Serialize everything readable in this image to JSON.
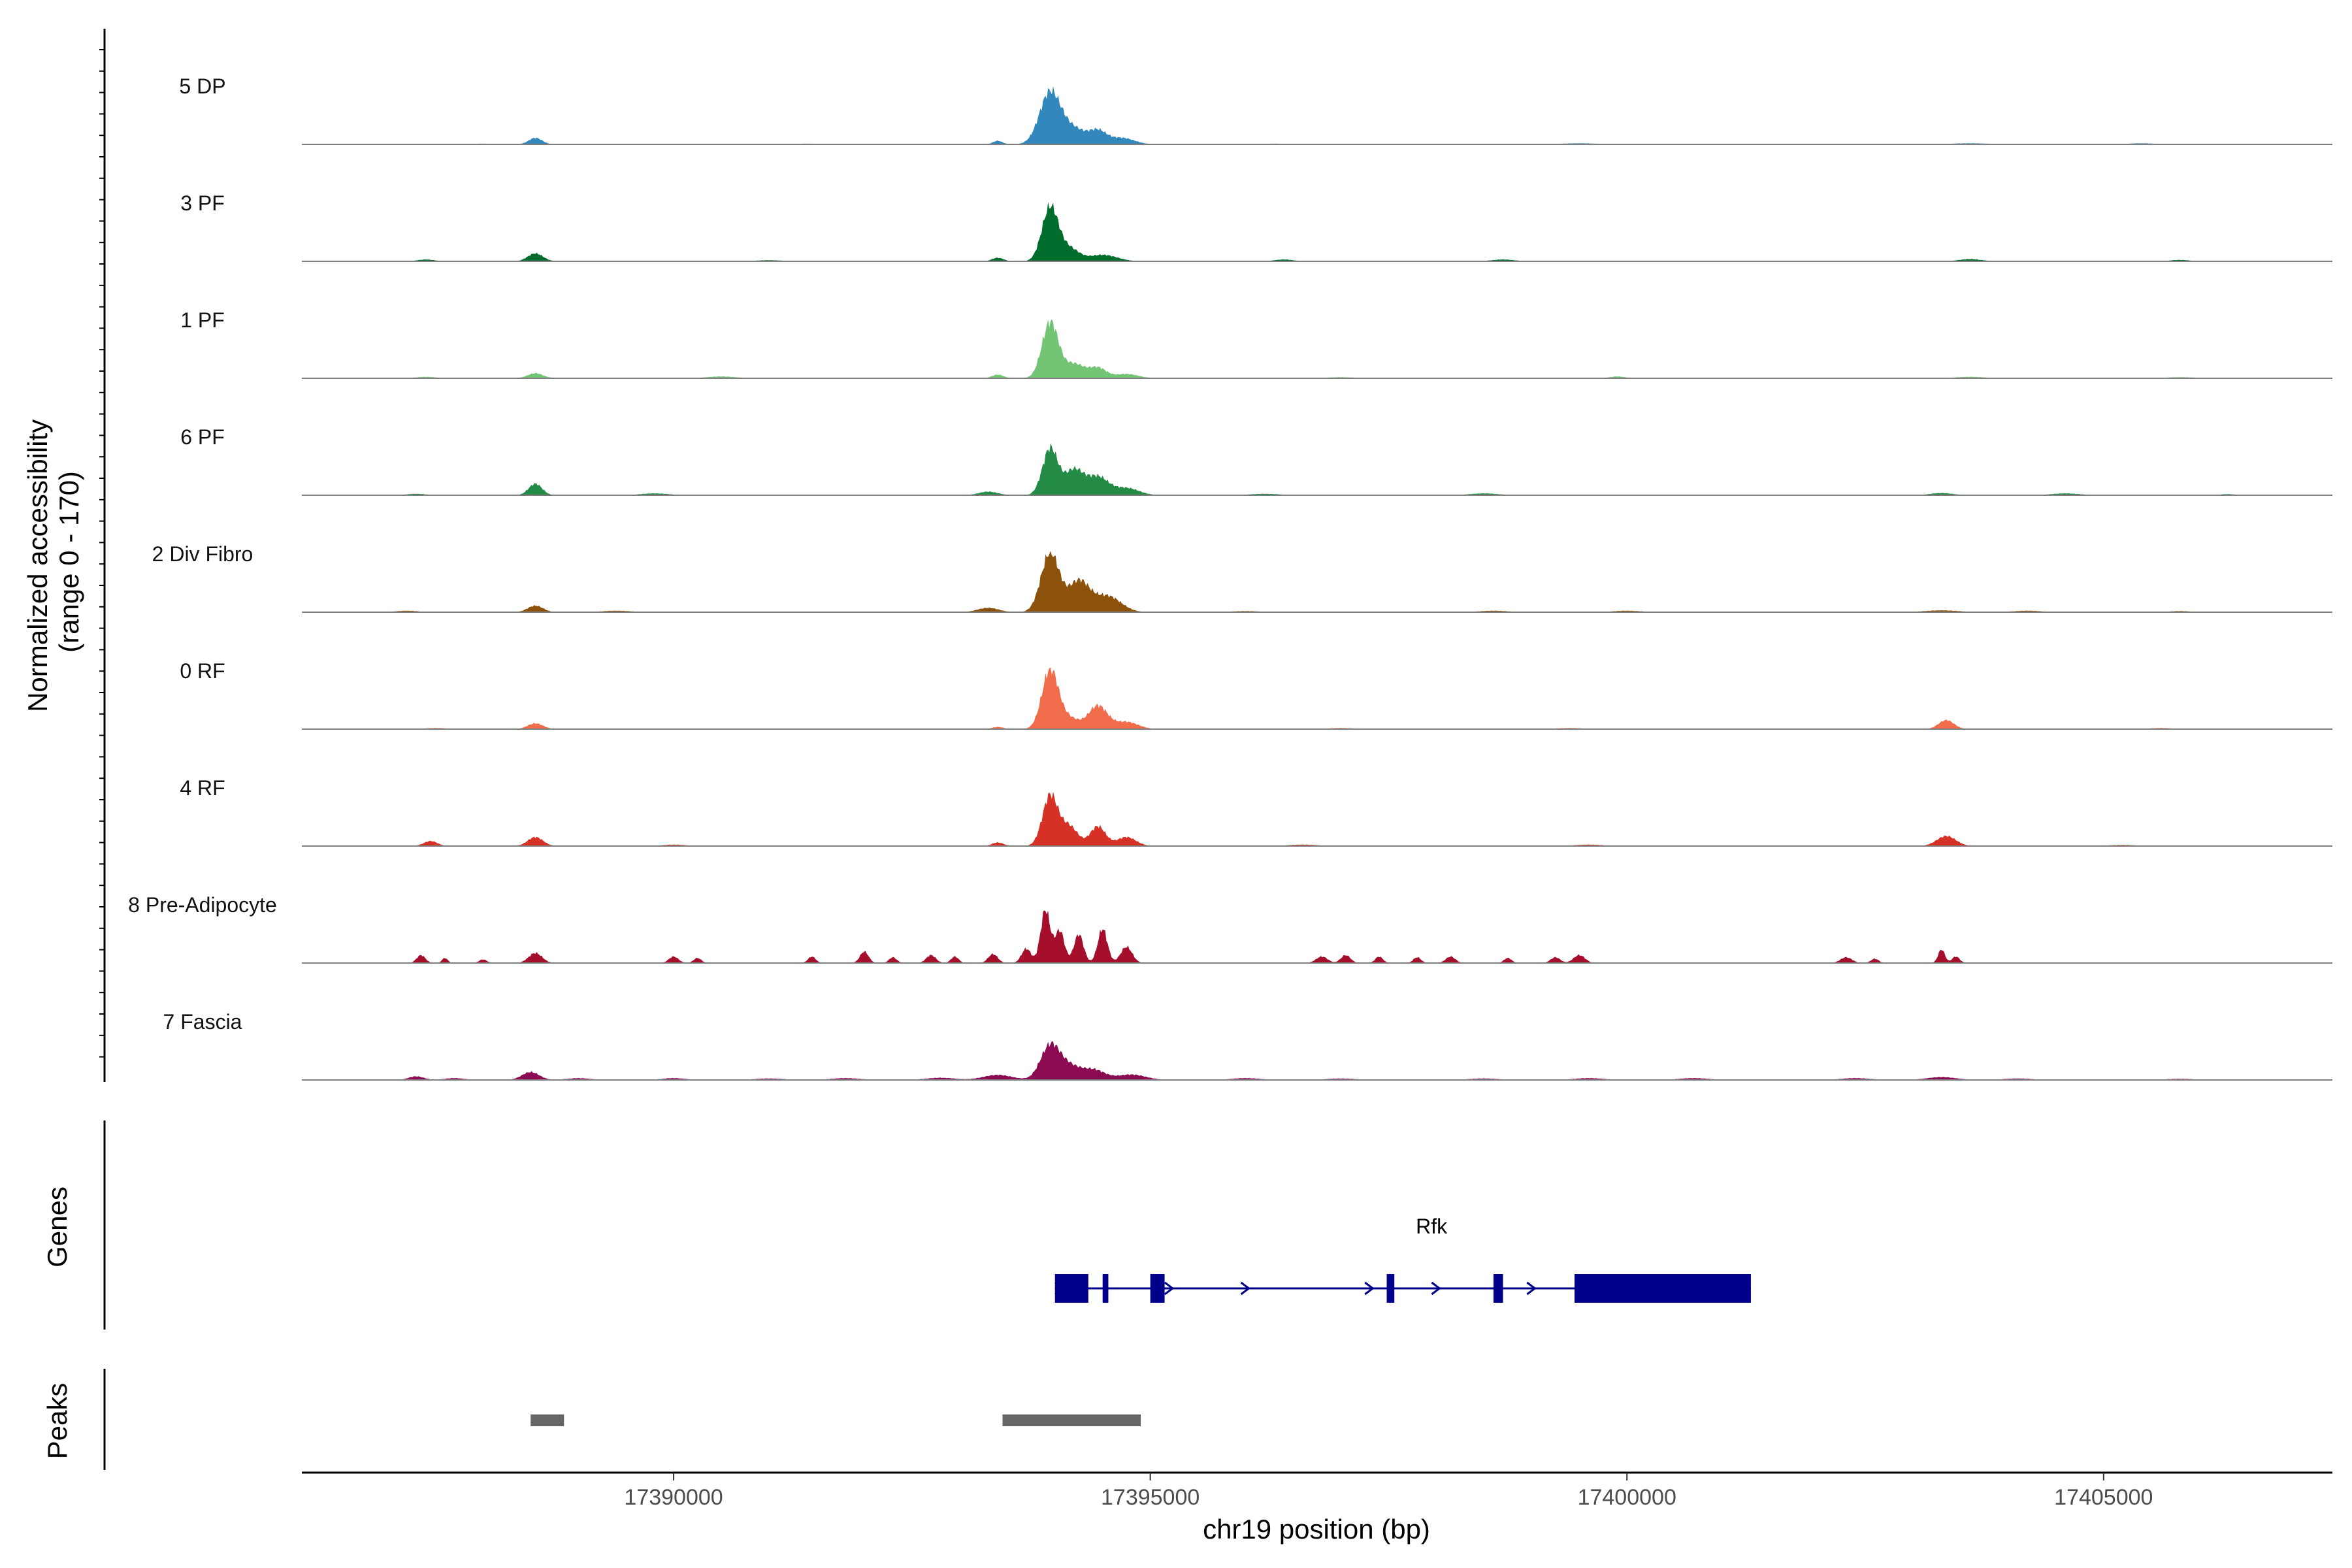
{
  "chart_data": {
    "type": "area",
    "title": "",
    "chromosome": "chr19",
    "xlabel": "chr19 position (bp)",
    "ylabel": "Normalized accessibility\n(range 0 - 170)",
    "ylabel_lines": [
      "Normalized accessibility",
      "(range 0 - 170)"
    ],
    "ylim": [
      0,
      170
    ],
    "xlim": [
      17386100,
      17407400
    ],
    "x_ticks": [
      17390000,
      17395000,
      17400000,
      17405000
    ],
    "x_tick_labels": [
      "17390000",
      "17395000",
      "17400000",
      "17405000"
    ],
    "series": [
      {
        "name": "5 DP",
        "color": "#3288bd",
        "peaks": [
          [
            17388550,
            18,
            70
          ],
          [
            17393400,
            10,
            50
          ],
          [
            17393950,
            145,
            110
          ],
          [
            17394200,
            42,
            120
          ],
          [
            17394450,
            35,
            90
          ],
          [
            17394700,
            18,
            130
          ],
          [
            17388000,
            2,
            120
          ],
          [
            17391400,
            2,
            160
          ],
          [
            17396300,
            2,
            120
          ],
          [
            17399500,
            3,
            200
          ],
          [
            17403600,
            3,
            200
          ],
          [
            17405400,
            3,
            150
          ]
        ]
      },
      {
        "name": "3 PF",
        "color": "#006d2c",
        "peaks": [
          [
            17388550,
            22,
            80
          ],
          [
            17387400,
            5,
            90
          ],
          [
            17393400,
            10,
            60
          ],
          [
            17393950,
            150,
            85
          ],
          [
            17394150,
            35,
            100
          ],
          [
            17394500,
            18,
            150
          ],
          [
            17396400,
            5,
            100
          ],
          [
            17398700,
            5,
            120
          ],
          [
            17403600,
            6,
            120
          ],
          [
            17405800,
            4,
            100
          ],
          [
            17391000,
            3,
            150
          ]
        ]
      },
      {
        "name": "1 PF",
        "color": "#74c476",
        "peaks": [
          [
            17388550,
            14,
            80
          ],
          [
            17387400,
            4,
            100
          ],
          [
            17390500,
            5,
            150
          ],
          [
            17393400,
            10,
            60
          ],
          [
            17393950,
            155,
            85
          ],
          [
            17394200,
            40,
            110
          ],
          [
            17394450,
            28,
            90
          ],
          [
            17394750,
            12,
            120
          ],
          [
            17397000,
            3,
            130
          ],
          [
            17399900,
            5,
            80
          ],
          [
            17403600,
            4,
            150
          ],
          [
            17405800,
            3,
            150
          ]
        ]
      },
      {
        "name": "6 PF",
        "color": "#238b45",
        "peaks": [
          [
            17388550,
            32,
            70
          ],
          [
            17387300,
            4,
            100
          ],
          [
            17389800,
            5,
            150
          ],
          [
            17393300,
            10,
            100
          ],
          [
            17393950,
            130,
            80
          ],
          [
            17394200,
            70,
            100
          ],
          [
            17394450,
            50,
            110
          ],
          [
            17394750,
            20,
            130
          ],
          [
            17396200,
            4,
            150
          ],
          [
            17398500,
            5,
            150
          ],
          [
            17403300,
            6,
            120
          ],
          [
            17404600,
            5,
            150
          ],
          [
            17406300,
            3,
            80
          ]
        ]
      },
      {
        "name": "2 Div Fibro",
        "color": "#8c510a",
        "peaks": [
          [
            17388550,
            18,
            80
          ],
          [
            17387200,
            4,
            120
          ],
          [
            17389400,
            4,
            150
          ],
          [
            17393300,
            12,
            110
          ],
          [
            17393950,
            165,
            95
          ],
          [
            17394250,
            85,
            110
          ],
          [
            17394550,
            45,
            140
          ],
          [
            17396000,
            3,
            150
          ],
          [
            17398600,
            4,
            150
          ],
          [
            17400000,
            4,
            150
          ],
          [
            17403300,
            5,
            180
          ],
          [
            17404200,
            4,
            150
          ],
          [
            17405800,
            3,
            120
          ]
        ]
      },
      {
        "name": "0 RF",
        "color": "#f16c4a",
        "peaks": [
          [
            17388550,
            16,
            80
          ],
          [
            17387500,
            3,
            120
          ],
          [
            17393400,
            6,
            60
          ],
          [
            17393950,
            165,
            85
          ],
          [
            17394150,
            30,
            100
          ],
          [
            17394450,
            65,
            100
          ],
          [
            17394750,
            20,
            120
          ],
          [
            17397000,
            3,
            150
          ],
          [
            17399400,
            3,
            150
          ],
          [
            17403350,
            25,
            80
          ],
          [
            17405600,
            3,
            120
          ]
        ]
      },
      {
        "name": "4 RF",
        "color": "#d73027",
        "peaks": [
          [
            17387450,
            14,
            70
          ],
          [
            17388550,
            25,
            80
          ],
          [
            17390000,
            4,
            120
          ],
          [
            17393400,
            10,
            60
          ],
          [
            17393950,
            140,
            80
          ],
          [
            17394150,
            55,
            90
          ],
          [
            17394450,
            55,
            80
          ],
          [
            17394750,
            25,
            100
          ],
          [
            17396600,
            4,
            150
          ],
          [
            17399600,
            4,
            150
          ],
          [
            17403350,
            28,
            100
          ],
          [
            17405200,
            3,
            150
          ]
        ]
      },
      {
        "name": "8 Pre-Adipocyte",
        "color": "#a50f2c",
        "peaks": [
          [
            17387350,
            22,
            45
          ],
          [
            17387600,
            14,
            30
          ],
          [
            17388000,
            10,
            40
          ],
          [
            17388550,
            28,
            70
          ],
          [
            17390000,
            18,
            50
          ],
          [
            17390250,
            14,
            40
          ],
          [
            17391450,
            18,
            40
          ],
          [
            17392000,
            32,
            45
          ],
          [
            17392300,
            16,
            40
          ],
          [
            17392700,
            22,
            50
          ],
          [
            17392950,
            18,
            40
          ],
          [
            17393350,
            25,
            50
          ],
          [
            17393700,
            40,
            50
          ],
          [
            17393900,
            148,
            50
          ],
          [
            17394050,
            90,
            50
          ],
          [
            17394250,
            80,
            50
          ],
          [
            17394500,
            95,
            50
          ],
          [
            17394750,
            45,
            60
          ],
          [
            17396800,
            18,
            60
          ],
          [
            17397050,
            22,
            50
          ],
          [
            17397400,
            18,
            40
          ],
          [
            17397800,
            16,
            40
          ],
          [
            17398150,
            18,
            50
          ],
          [
            17398750,
            14,
            40
          ],
          [
            17399250,
            16,
            50
          ],
          [
            17399500,
            22,
            60
          ],
          [
            17402300,
            16,
            60
          ],
          [
            17402600,
            12,
            40
          ],
          [
            17403300,
            38,
            35
          ],
          [
            17403450,
            18,
            40
          ]
        ]
      },
      {
        "name": "7 Fascia",
        "color": "#8b0a52",
        "peaks": [
          [
            17387300,
            10,
            80
          ],
          [
            17387700,
            5,
            100
          ],
          [
            17388500,
            22,
            90
          ],
          [
            17389000,
            5,
            120
          ],
          [
            17390000,
            5,
            120
          ],
          [
            17391000,
            4,
            150
          ],
          [
            17391800,
            5,
            150
          ],
          [
            17392800,
            6,
            150
          ],
          [
            17393400,
            14,
            150
          ],
          [
            17393950,
            95,
            100
          ],
          [
            17394150,
            35,
            110
          ],
          [
            17394400,
            28,
            120
          ],
          [
            17394800,
            15,
            150
          ],
          [
            17396000,
            5,
            150
          ],
          [
            17397000,
            4,
            150
          ],
          [
            17398500,
            4,
            150
          ],
          [
            17399600,
            5,
            150
          ],
          [
            17400700,
            5,
            150
          ],
          [
            17402400,
            5,
            150
          ],
          [
            17403300,
            8,
            150
          ],
          [
            17404100,
            4,
            150
          ],
          [
            17405800,
            3,
            150
          ]
        ]
      }
    ],
    "genes_track": {
      "label": "Genes",
      "gene": "Rfk",
      "strand": "+",
      "start": 17394000,
      "end": 17401300,
      "exons": [
        [
          17394000,
          17394350
        ],
        [
          17394500,
          17394560
        ],
        [
          17395000,
          17395150
        ],
        [
          17397480,
          17397560
        ],
        [
          17398600,
          17398700
        ],
        [
          17399450,
          17401300
        ]
      ]
    },
    "peaks_track": {
      "label": "Peaks",
      "regions": [
        [
          17388500,
          17388850
        ],
        [
          17393450,
          17394900
        ]
      ]
    }
  },
  "colors": {
    "gene": "#00008b",
    "peak": "#666666",
    "baseline": "#7f7f7f",
    "axis": "#000000"
  }
}
